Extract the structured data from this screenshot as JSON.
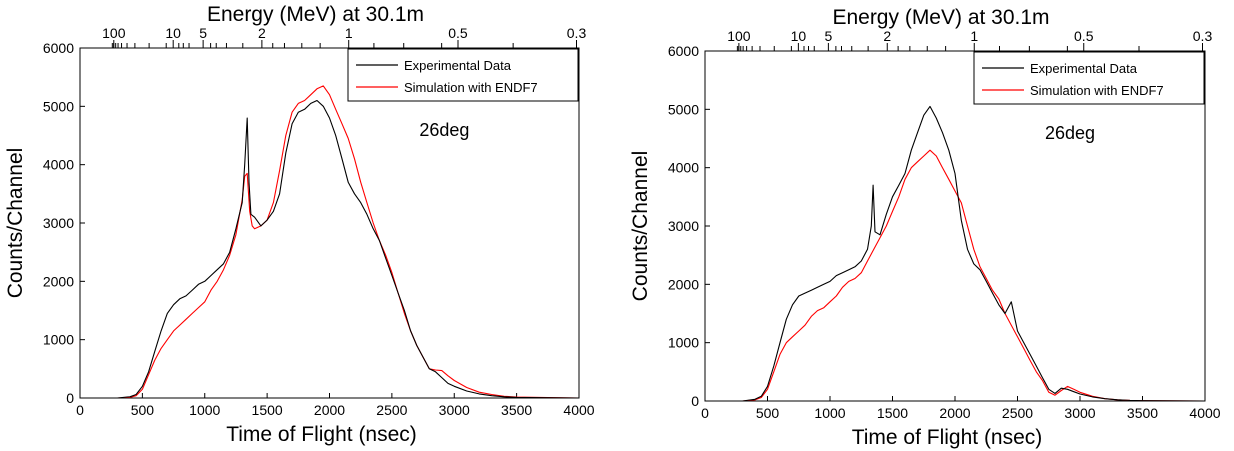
{
  "chart_data": [
    {
      "type": "line",
      "xlabel": "Time of Flight (nsec)",
      "ylabel": "Counts/Channel",
      "top_axis_label": "Energy (MeV) at 30.1m",
      "top_tick_labels": [
        {
          "label": "100",
          "x": 271
        },
        {
          "label": "10",
          "x": 747
        },
        {
          "label": "5",
          "x": 987
        },
        {
          "label": "2",
          "x": 1458
        },
        {
          "label": "1",
          "x": 2154
        },
        {
          "label": "0.5",
          "x": 3030
        },
        {
          "label": "0.3",
          "x": 3980
        }
      ],
      "top_minor_ticks": [
        259,
        270,
        286,
        305,
        333,
        377,
        440,
        554,
        691,
        792,
        828,
        874,
        1047,
        1092,
        1174,
        1305,
        1545,
        1639,
        1778,
        1925,
        2356,
        2595,
        2899,
        3472
      ],
      "xlim": [
        0,
        4000
      ],
      "ylim": [
        0,
        6000
      ],
      "xticks": [
        0,
        500,
        1000,
        1500,
        2000,
        2500,
        3000,
        3500,
        4000
      ],
      "yticks": [
        0,
        1000,
        2000,
        3000,
        4000,
        5000,
        6000
      ],
      "annotation": "26deg",
      "legend_position": "top-right",
      "series": [
        {
          "name": "Experimental Data",
          "color": "#000000",
          "x": [
            0,
            300,
            400,
            450,
            500,
            550,
            600,
            650,
            700,
            750,
            800,
            850,
            900,
            950,
            1000,
            1050,
            1100,
            1150,
            1200,
            1250,
            1300,
            1320,
            1340,
            1355,
            1370,
            1400,
            1450,
            1500,
            1550,
            1600,
            1650,
            1700,
            1750,
            1800,
            1850,
            1900,
            1950,
            2000,
            2050,
            2100,
            2150,
            2200,
            2250,
            2300,
            2350,
            2400,
            2450,
            2500,
            2550,
            2600,
            2650,
            2700,
            2750,
            2800,
            2850,
            2900,
            2950,
            3000,
            3100,
            3200,
            3300,
            3400,
            3500,
            4000
          ],
          "y": [
            0,
            0,
            20,
            60,
            200,
            450,
            800,
            1150,
            1450,
            1600,
            1700,
            1750,
            1850,
            1950,
            2000,
            2100,
            2200,
            2300,
            2500,
            2900,
            3350,
            4000,
            4800,
            3700,
            3150,
            3100,
            2950,
            3050,
            3200,
            3500,
            4200,
            4700,
            4900,
            4950,
            5050,
            5100,
            5000,
            4800,
            4500,
            4100,
            3700,
            3500,
            3350,
            3150,
            2900,
            2700,
            2400,
            2100,
            1800,
            1500,
            1150,
            900,
            700,
            500,
            450,
            350,
            250,
            200,
            120,
            70,
            40,
            20,
            10,
            0
          ]
        },
        {
          "name": "Simulation with ENDF7",
          "color": "#ff0000",
          "x": [
            0,
            300,
            400,
            450,
            500,
            550,
            600,
            650,
            700,
            750,
            800,
            850,
            900,
            950,
            1000,
            1050,
            1100,
            1150,
            1200,
            1250,
            1300,
            1320,
            1340,
            1360,
            1380,
            1400,
            1450,
            1500,
            1550,
            1600,
            1650,
            1700,
            1750,
            1800,
            1850,
            1900,
            1950,
            2000,
            2050,
            2100,
            2150,
            2200,
            2250,
            2300,
            2350,
            2400,
            2450,
            2500,
            2550,
            2600,
            2650,
            2700,
            2750,
            2800,
            2850,
            2900,
            2950,
            3000,
            3100,
            3200,
            3300,
            3400,
            3500,
            4000
          ],
          "y": [
            0,
            0,
            10,
            40,
            150,
            400,
            650,
            850,
            1000,
            1150,
            1250,
            1350,
            1450,
            1550,
            1650,
            1850,
            2000,
            2200,
            2450,
            2800,
            3400,
            3800,
            3850,
            3200,
            2950,
            2900,
            2950,
            3050,
            3350,
            3900,
            4500,
            4900,
            5050,
            5100,
            5200,
            5300,
            5350,
            5200,
            4950,
            4700,
            4450,
            4100,
            3700,
            3350,
            3000,
            2700,
            2450,
            2150,
            1800,
            1450,
            1150,
            900,
            700,
            500,
            480,
            470,
            380,
            300,
            180,
            100,
            60,
            30,
            15,
            0
          ]
        }
      ]
    },
    {
      "type": "line",
      "xlabel": "Time of Flight (nsec)",
      "ylabel": "Counts/Channel",
      "top_axis_label": "Energy (MeV) at 30.1m",
      "top_tick_labels": [
        {
          "label": "100",
          "x": 271
        },
        {
          "label": "10",
          "x": 747
        },
        {
          "label": "5",
          "x": 987
        },
        {
          "label": "2",
          "x": 1458
        },
        {
          "label": "1",
          "x": 2154
        },
        {
          "label": "0.5",
          "x": 3030
        },
        {
          "label": "0.3",
          "x": 3980
        }
      ],
      "top_minor_ticks": [
        259,
        270,
        286,
        305,
        333,
        377,
        440,
        554,
        691,
        792,
        828,
        874,
        1047,
        1092,
        1174,
        1305,
        1545,
        1639,
        1778,
        1925,
        2356,
        2595,
        2899,
        3472
      ],
      "xlim": [
        0,
        4000
      ],
      "ylim": [
        0,
        6000
      ],
      "xticks": [
        0,
        500,
        1000,
        1500,
        2000,
        2500,
        3000,
        3500,
        4000
      ],
      "yticks": [
        0,
        1000,
        2000,
        3000,
        4000,
        5000,
        6000
      ],
      "annotation": "26deg",
      "legend_position": "top-right",
      "series": [
        {
          "name": "Experimental Data",
          "color": "#000000",
          "x": [
            0,
            300,
            400,
            450,
            500,
            550,
            600,
            650,
            700,
            750,
            800,
            850,
            900,
            950,
            1000,
            1050,
            1100,
            1150,
            1200,
            1250,
            1300,
            1330,
            1345,
            1360,
            1400,
            1450,
            1500,
            1550,
            1600,
            1650,
            1700,
            1750,
            1800,
            1850,
            1900,
            1950,
            2000,
            2050,
            2100,
            2150,
            2200,
            2250,
            2300,
            2350,
            2400,
            2450,
            2500,
            2550,
            2600,
            2650,
            2700,
            2750,
            2800,
            2850,
            2900,
            2950,
            3000,
            3100,
            3200,
            3300,
            3400,
            3500,
            4000
          ],
          "y": [
            0,
            0,
            30,
            80,
            250,
            600,
            1000,
            1400,
            1650,
            1800,
            1850,
            1900,
            1950,
            2000,
            2050,
            2150,
            2200,
            2250,
            2300,
            2400,
            2600,
            3000,
            3700,
            2900,
            2850,
            3200,
            3500,
            3700,
            3900,
            4300,
            4600,
            4900,
            5050,
            4850,
            4600,
            4300,
            3900,
            3100,
            2600,
            2350,
            2250,
            2050,
            1850,
            1650,
            1500,
            1700,
            1200,
            1000,
            800,
            600,
            400,
            200,
            130,
            220,
            200,
            160,
            120,
            70,
            40,
            20,
            10,
            5,
            0
          ]
        },
        {
          "name": "Simulation with ENDF7",
          "color": "#ff0000",
          "x": [
            0,
            300,
            400,
            450,
            500,
            550,
            600,
            650,
            700,
            750,
            800,
            850,
            900,
            950,
            1000,
            1050,
            1100,
            1150,
            1200,
            1250,
            1300,
            1350,
            1400,
            1450,
            1500,
            1550,
            1600,
            1650,
            1700,
            1750,
            1800,
            1850,
            1900,
            1950,
            2000,
            2050,
            2100,
            2150,
            2200,
            2250,
            2300,
            2350,
            2400,
            2450,
            2500,
            2550,
            2600,
            2650,
            2700,
            2750,
            2800,
            2850,
            2900,
            2950,
            3000,
            3100,
            3200,
            3300,
            3400,
            3500,
            4000
          ],
          "y": [
            0,
            0,
            20,
            60,
            200,
            500,
            800,
            1000,
            1100,
            1200,
            1300,
            1450,
            1550,
            1600,
            1700,
            1800,
            1950,
            2050,
            2100,
            2200,
            2400,
            2600,
            2800,
            3000,
            3250,
            3500,
            3800,
            4000,
            4100,
            4200,
            4300,
            4200,
            4000,
            3800,
            3600,
            3400,
            3000,
            2600,
            2300,
            2100,
            1900,
            1750,
            1500,
            1300,
            1100,
            900,
            700,
            500,
            350,
            150,
            100,
            180,
            250,
            200,
            150,
            80,
            40,
            20,
            10,
            5,
            0
          ]
        }
      ]
    }
  ]
}
